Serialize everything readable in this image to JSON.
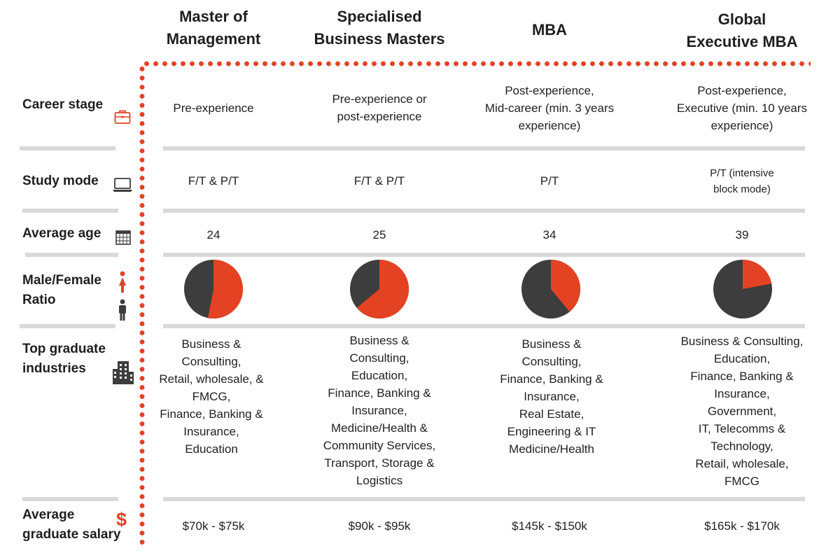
{
  "columns": [
    {
      "title": "Master of\nManagement"
    },
    {
      "title": "Specialised\nBusiness Masters"
    },
    {
      "title": "MBA"
    },
    {
      "title": "Global\nExecutive MBA"
    }
  ],
  "rows": {
    "career_stage": {
      "label": "Career stage",
      "icon": "briefcase-icon",
      "values": [
        "Pre-experience",
        "Pre-experience or\npost-experience",
        "Post-experience,\nMid-career (min. 3 years\nexperience)",
        "Post-experience,\nExecutive (min. 10 years\nexperience)"
      ]
    },
    "study_mode": {
      "label": "Study mode",
      "icon": "laptop-icon",
      "values": [
        "F/T & P/T",
        "F/T & P/T",
        "P/T",
        "P/T (intensive\nblock mode)"
      ]
    },
    "average_age": {
      "label": "Average age",
      "icon": "calendar-icon",
      "values": [
        "24",
        "25",
        "34",
        "39"
      ]
    },
    "gender_ratio": {
      "label": "Male/Female\nRatio",
      "icon_female": "female-icon",
      "icon_male": "male-icon",
      "female_fraction": [
        0.53,
        0.64,
        0.39,
        0.22
      ]
    },
    "industries": {
      "label": "Top graduate\nindustries",
      "icon": "building-icon",
      "values": [
        "Business &\nConsulting,\nRetail, wholesale, &\nFMCG,\nFinance, Banking &\nInsurance,\nEducation",
        "Business &\nConsulting,\nEducation,\nFinance, Banking &\nInsurance,\nMedicine/Health &\nCommunity Services,\nTransport, Storage &\nLogistics",
        "Business &\nConsulting,\nFinance, Banking &\nInsurance,\nReal Estate,\nEngineering & IT\nMedicine/Health",
        "Business & Consulting,\nEducation,\nFinance, Banking &\nInsurance,\nGovernment,\nIT, Telecomms &\nTechnology,\nRetail, wholesale,\nFMCG"
      ]
    },
    "salary": {
      "label": "Average\ngraduate salary",
      "icon": "dollar-icon",
      "values": [
        "$70k - $75k",
        "$90k - $95k",
        "$145k - $150k",
        "$165k - $170k"
      ]
    }
  },
  "colors": {
    "accent": "#e34223",
    "dark": "#3d3d3d",
    "divider": "#d9d9d9"
  }
}
